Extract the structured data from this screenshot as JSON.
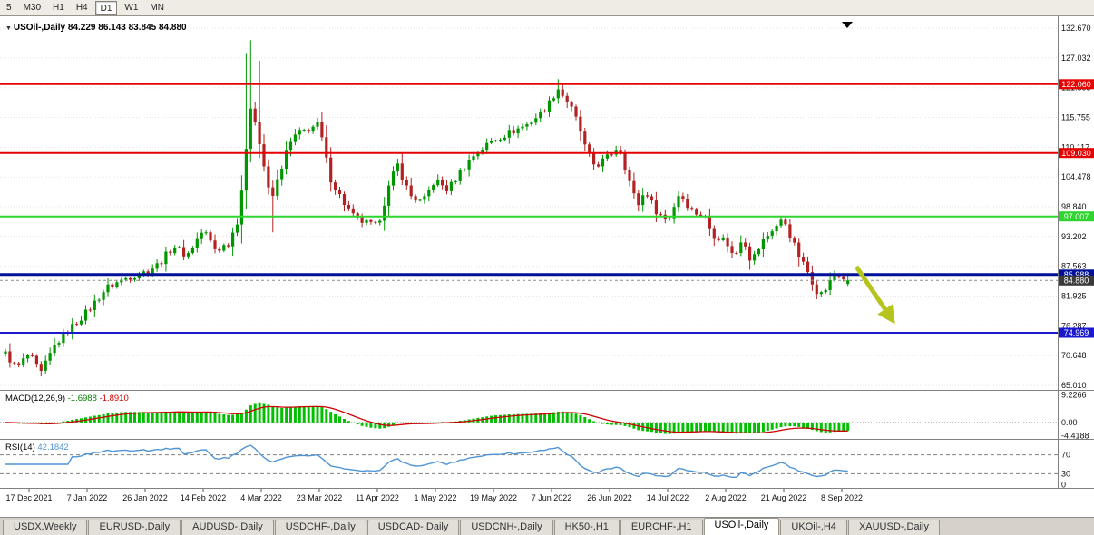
{
  "toolbar": {
    "timeframes": [
      {
        "label": "5",
        "active": false
      },
      {
        "label": "M30",
        "active": false
      },
      {
        "label": "H1",
        "active": false
      },
      {
        "label": "H4",
        "active": false
      },
      {
        "label": "D1",
        "active": true
      },
      {
        "label": "W1",
        "active": false
      },
      {
        "label": "MN",
        "active": false
      }
    ]
  },
  "chart": {
    "title": {
      "symbol": "USOil-,Daily",
      "open": "84.229",
      "high": "86.143",
      "low": "83.845",
      "close": "84.880"
    },
    "price_axis_ticks": [
      "132.670",
      "127.032",
      "121.393",
      "115.755",
      "110.117",
      "104.478",
      "98.840",
      "93.202",
      "87.563",
      "81.925",
      "76.287",
      "70.648",
      "65.010"
    ],
    "levels": [
      {
        "value": 122.06,
        "label": "122.060",
        "color": "#e60000",
        "width": 2
      },
      {
        "value": 109.03,
        "label": "109.030",
        "color": "#e60000",
        "width": 2
      },
      {
        "value": 97.007,
        "label": "97.007",
        "color": "#2ed52e",
        "width": 2
      },
      {
        "value": 85.988,
        "label": "85.988",
        "color": "#001099",
        "width": 3
      },
      {
        "value": 74.969,
        "label": "74.969",
        "color": "#1a1acc",
        "width": 2
      }
    ],
    "current_price": {
      "value": 84.88,
      "label": "84.880",
      "badge_color": "#3a3a3a"
    },
    "dates": [
      "17 Dec 2021",
      "7 Jan 2022",
      "26 Jan 2022",
      "14 Feb 2022",
      "4 Mar 2022",
      "23 Mar 2022",
      "11 Apr 2022",
      "1 May 2022",
      "19 May 2022",
      "7 Jun 2022",
      "26 Jun 2022",
      "14 Jul 2022",
      "2 Aug 2022",
      "21 Aug 2022",
      "8 Sep 2022"
    ],
    "colors": {
      "up_candle": "#009600",
      "down_candle": "#b22222",
      "macd_histogram": "#00c000",
      "macd_signal": "#cc0000",
      "rsi_line": "#4f94d4",
      "grid": "#e3e3e3"
    },
    "arrow_color": "#b6c41e"
  },
  "chart_data": {
    "type": "candlestick",
    "symbol": "USOil",
    "timeframe": "Daily",
    "bars": 190,
    "last_ohlc": {
      "open": 84.229,
      "high": 86.143,
      "low": 83.845,
      "close": 84.88
    },
    "price_path": [
      [
        0.0,
        71.0
      ],
      [
        0.013,
        68.3
      ],
      [
        0.028,
        70.9
      ],
      [
        0.042,
        67.2
      ],
      [
        0.058,
        72.5
      ],
      [
        0.075,
        75.5
      ],
      [
        0.097,
        79.0
      ],
      [
        0.12,
        83.5
      ],
      [
        0.145,
        85.5
      ],
      [
        0.166,
        86.5
      ],
      [
        0.182,
        88.0
      ],
      [
        0.2,
        91.5
      ],
      [
        0.215,
        89.5
      ],
      [
        0.235,
        94.5
      ],
      [
        0.25,
        90.5
      ],
      [
        0.265,
        92.0
      ],
      [
        0.276,
        96.5
      ],
      [
        0.285,
        108.0
      ],
      [
        0.292,
        119.5
      ],
      [
        0.3,
        112.0
      ],
      [
        0.307,
        106.5
      ],
      [
        0.315,
        99.5
      ],
      [
        0.325,
        105.0
      ],
      [
        0.335,
        110.0
      ],
      [
        0.345,
        112.5
      ],
      [
        0.372,
        114.5
      ],
      [
        0.385,
        104.5
      ],
      [
        0.4,
        100.0
      ],
      [
        0.415,
        96.5
      ],
      [
        0.441,
        95.0
      ],
      [
        0.455,
        102.5
      ],
      [
        0.465,
        107.0
      ],
      [
        0.48,
        101.0
      ],
      [
        0.495,
        99.5
      ],
      [
        0.51,
        104.0
      ],
      [
        0.525,
        102.0
      ],
      [
        0.54,
        105.5
      ],
      [
        0.555,
        108.5
      ],
      [
        0.579,
        111.5
      ],
      [
        0.6,
        113.0
      ],
      [
        0.62,
        114.5
      ],
      [
        0.635,
        116.5
      ],
      [
        0.648,
        119.0
      ],
      [
        0.655,
        121.5
      ],
      [
        0.67,
        118.0
      ],
      [
        0.68,
        114.5
      ],
      [
        0.69,
        109.0
      ],
      [
        0.7,
        106.5
      ],
      [
        0.717,
        108.5
      ],
      [
        0.728,
        110.5
      ],
      [
        0.74,
        104.0
      ],
      [
        0.75,
        99.0
      ],
      [
        0.76,
        102.0
      ],
      [
        0.77,
        98.5
      ],
      [
        0.786,
        96.0
      ],
      [
        0.8,
        101.5
      ],
      [
        0.815,
        98.0
      ],
      [
        0.83,
        97.0
      ],
      [
        0.84,
        93.5
      ],
      [
        0.855,
        92.5
      ],
      [
        0.865,
        89.0
      ],
      [
        0.875,
        93.5
      ],
      [
        0.885,
        88.5
      ],
      [
        0.9,
        92.5
      ],
      [
        0.91,
        94.5
      ],
      [
        0.924,
        96.5
      ],
      [
        0.935,
        92.0
      ],
      [
        0.945,
        88.5
      ],
      [
        0.952,
        86.6
      ],
      [
        0.96,
        84.0
      ],
      [
        0.966,
        82.0
      ],
      [
        0.975,
        83.5
      ],
      [
        0.985,
        86.2
      ],
      [
        0.993,
        85.5
      ],
      [
        1.0,
        84.88
      ]
    ],
    "wick_spikes": [
      {
        "f": 0.287,
        "high": 127.8
      },
      {
        "f": 0.293,
        "high": 130.4
      },
      {
        "f": 0.299,
        "high": 126.5
      },
      {
        "f": 0.316,
        "low": 94.0
      },
      {
        "f": 0.654,
        "high": 123.0
      },
      {
        "f": 0.964,
        "low": 81.3
      }
    ]
  },
  "macd": {
    "name": "MACD(12,26,9)",
    "value_main": "-1.6988",
    "value_signal": "-1.8910",
    "axis_labels": [
      "9.2266",
      "0.00",
      "-4.4188"
    ]
  },
  "rsi": {
    "name": "RSI(14)",
    "value": "42.1842",
    "levels": [
      70,
      30
    ],
    "level_labels": [
      "70",
      "30"
    ],
    "bottom_label": "0"
  },
  "tabs": [
    {
      "label": "USDX,Weekly",
      "active": false
    },
    {
      "label": "EURUSD-,Daily",
      "active": false
    },
    {
      "label": "AUDUSD-,Daily",
      "active": false
    },
    {
      "label": "USDCHF-,Daily",
      "active": false
    },
    {
      "label": "USDCAD-,Daily",
      "active": false
    },
    {
      "label": "USDCNH-,Daily",
      "active": false
    },
    {
      "label": "HK50-,H1",
      "active": false
    },
    {
      "label": "EURCHF-,H1",
      "active": false
    },
    {
      "label": "USOil-,Daily",
      "active": true
    },
    {
      "label": "UKOil-,H4",
      "active": false
    },
    {
      "label": "XAUUSD-,Daily",
      "active": false
    }
  ]
}
